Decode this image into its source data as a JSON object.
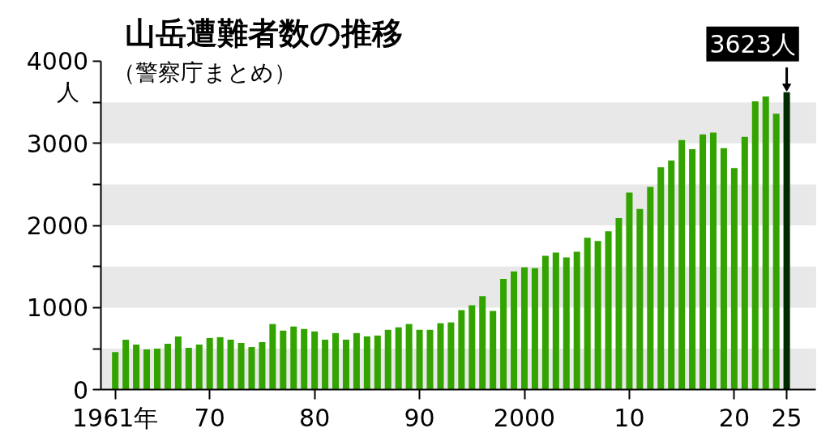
{
  "chart_data": {
    "type": "bar",
    "title": "山岳遭難者数の推移",
    "subtitle": "（警察庁まとめ）",
    "ylabel": "人",
    "x": [
      1961,
      1962,
      1963,
      1964,
      1965,
      1966,
      1967,
      1968,
      1969,
      1970,
      1971,
      1972,
      1973,
      1974,
      1975,
      1976,
      1977,
      1978,
      1979,
      1980,
      1981,
      1982,
      1983,
      1984,
      1985,
      1986,
      1987,
      1988,
      1989,
      1990,
      1991,
      1992,
      1993,
      1994,
      1995,
      1996,
      1997,
      1998,
      1999,
      2000,
      2001,
      2002,
      2003,
      2004,
      2005,
      2006,
      2007,
      2008,
      2009,
      2010,
      2011,
      2012,
      2013,
      2014,
      2015,
      2016,
      2017,
      2018,
      2019,
      2020,
      2021,
      2022,
      2023,
      2024,
      2025
    ],
    "values": [
      460,
      610,
      550,
      490,
      500,
      560,
      650,
      510,
      550,
      630,
      640,
      610,
      570,
      520,
      580,
      800,
      720,
      770,
      740,
      710,
      610,
      690,
      610,
      690,
      650,
      660,
      730,
      760,
      800,
      730,
      730,
      810,
      820,
      970,
      1030,
      1140,
      960,
      1350,
      1440,
      1490,
      1480,
      1630,
      1670,
      1610,
      1680,
      1850,
      1810,
      1930,
      2090,
      2400,
      2200,
      2470,
      2710,
      2790,
      3040,
      2930,
      3110,
      3130,
      2940,
      2700,
      3080,
      3510,
      3570,
      3360,
      3623
    ],
    "colors": [
      "#33a300",
      "#33a300",
      "#33a300",
      "#33a300",
      "#33a300",
      "#33a300",
      "#33a300",
      "#33a300",
      "#33a300",
      "#33a300",
      "#33a300",
      "#33a300",
      "#33a300",
      "#33a300",
      "#33a300",
      "#33a300",
      "#33a300",
      "#33a300",
      "#33a300",
      "#33a300",
      "#33a300",
      "#33a300",
      "#33a300",
      "#33a300",
      "#33a300",
      "#33a300",
      "#33a300",
      "#33a300",
      "#33a300",
      "#33a300",
      "#33a300",
      "#33a300",
      "#33a300",
      "#33a300",
      "#33a300",
      "#33a300",
      "#33a300",
      "#33a300",
      "#33a300",
      "#33a300",
      "#33a300",
      "#33a300",
      "#33a300",
      "#33a300",
      "#33a300",
      "#33a300",
      "#33a300",
      "#33a300",
      "#33a300",
      "#33a300",
      "#33a300",
      "#33a300",
      "#33a300",
      "#33a300",
      "#33a300",
      "#33a300",
      "#33a300",
      "#33a300",
      "#33a300",
      "#33a300",
      "#33a300",
      "#33a300",
      "#33a300",
      "#33a300",
      "#002a00"
    ],
    "value_labels": [
      null,
      null,
      null,
      null,
      null,
      null,
      null,
      null,
      null,
      null,
      null,
      null,
      null,
      null,
      null,
      null,
      null,
      null,
      null,
      null,
      null,
      null,
      null,
      null,
      null,
      null,
      null,
      null,
      null,
      null,
      null,
      null,
      null,
      null,
      null,
      null,
      null,
      null,
      null,
      null,
      null,
      null,
      null,
      null,
      null,
      null,
      null,
      null,
      null,
      null,
      null,
      null,
      null,
      null,
      null,
      null,
      null,
      null,
      null,
      null,
      null,
      null,
      null,
      null,
      "3623人"
    ],
    "xlim": [
      1959.6,
      2027.8
    ],
    "xticks": [
      {
        "value": 1961,
        "label": "1961年"
      },
      {
        "value": 1970,
        "label": "70"
      },
      {
        "value": 1980,
        "label": "80"
      },
      {
        "value": 1990,
        "label": "90"
      },
      {
        "value": 2000,
        "label": "2000"
      },
      {
        "value": 2010,
        "label": "10"
      },
      {
        "value": 2020,
        "label": "20"
      },
      {
        "value": 2025,
        "label": "25"
      }
    ],
    "ylim": [
      0,
      4000
    ],
    "yticks": [
      0,
      {
        "value": 500,
        "label": null
      },
      1000,
      {
        "value": 1500,
        "label": null
      },
      2000,
      {
        "value": 2500,
        "label": null
      },
      3000,
      {
        "value": 3500,
        "label": null
      },
      4000
    ],
    "bands": [
      {
        "axis": "y",
        "from": 0,
        "to": 500,
        "color": "#e8e8e8"
      },
      {
        "axis": "y",
        "from": 1000,
        "to": 1500,
        "color": "#e8e8e8"
      },
      {
        "axis": "y",
        "from": 2000,
        "to": 2500,
        "color": "#e8e8e8"
      },
      {
        "axis": "y",
        "from": 3000,
        "to": 3500,
        "color": "#e8e8e8"
      }
    ],
    "grid": false
  }
}
